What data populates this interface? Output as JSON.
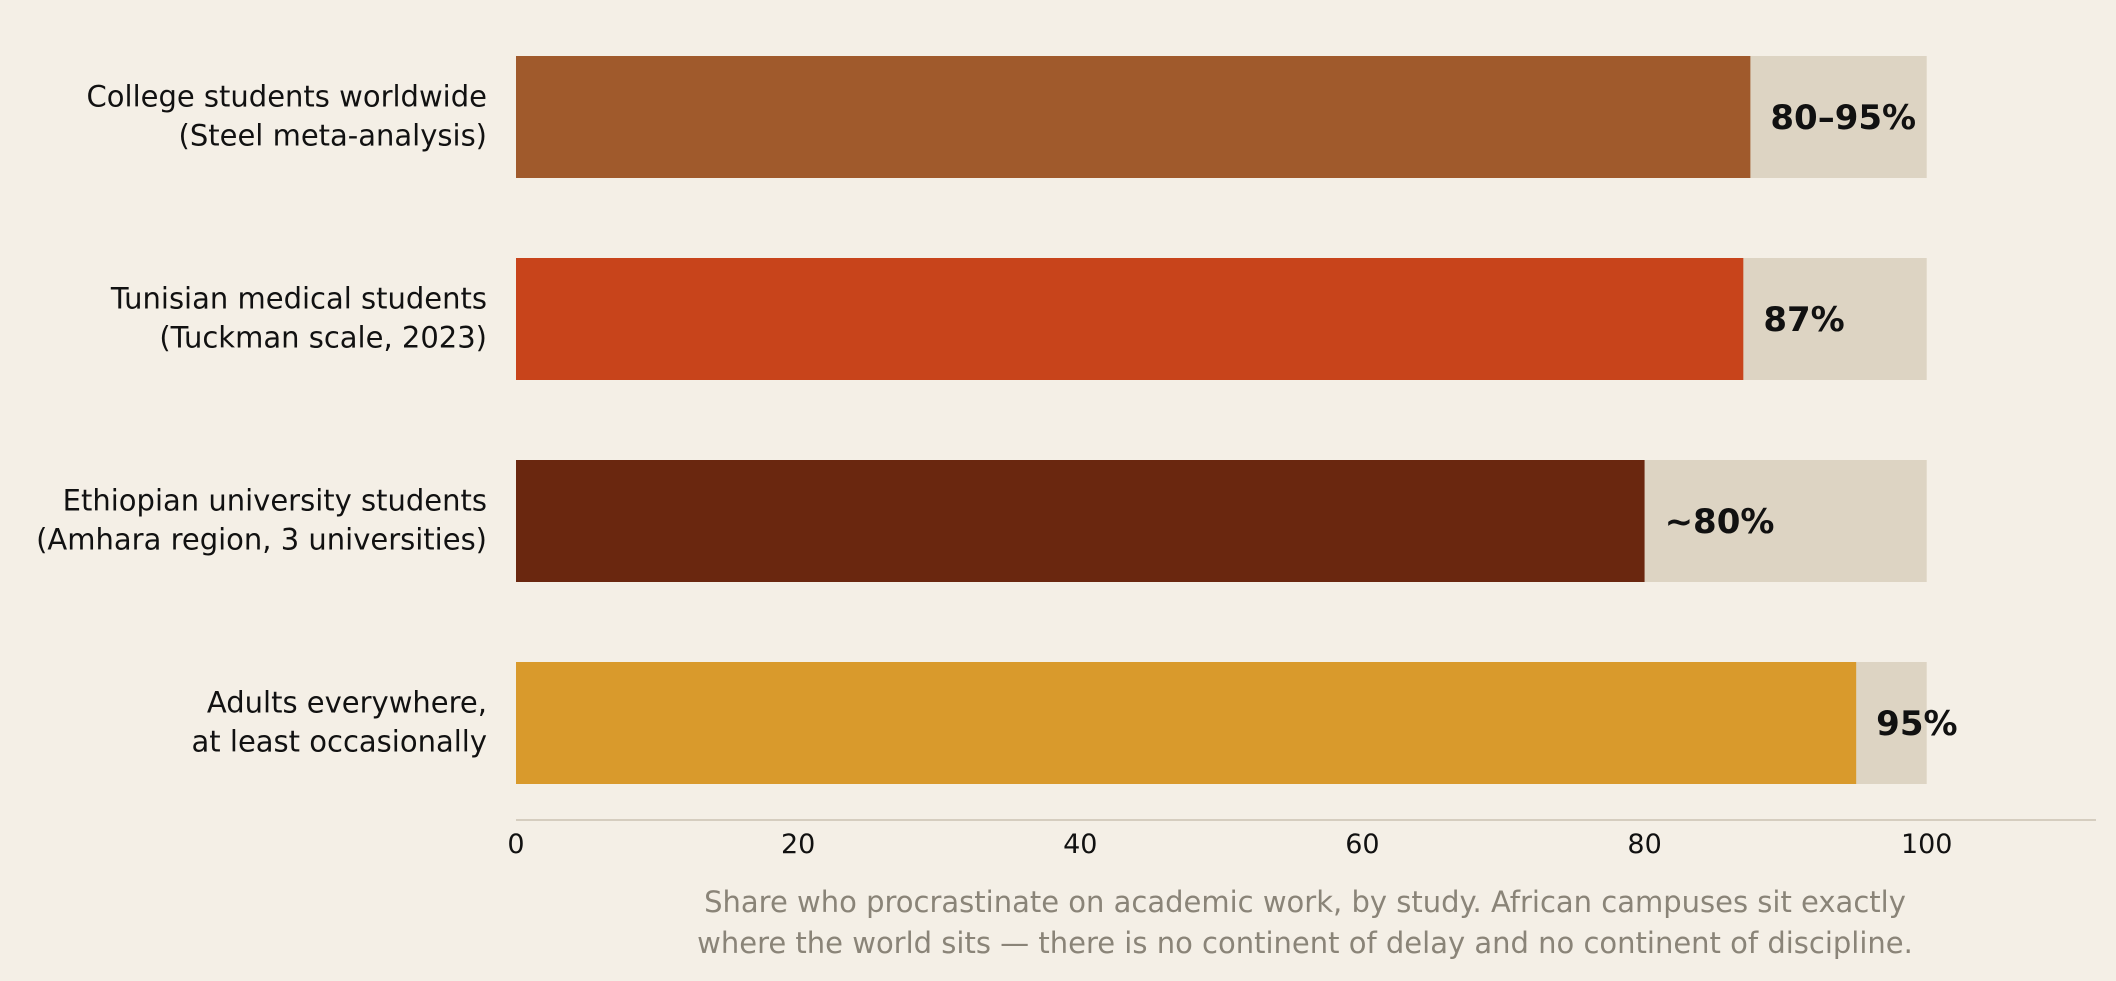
{
  "chart_data": {
    "type": "bar",
    "orientation": "horizontal",
    "categories": [
      [
        "College students worldwide",
        "(Steel meta-analysis)"
      ],
      [
        "Tunisian medical students",
        "(Tuckman scale, 2023)"
      ],
      [
        "Ethiopian university students",
        "(Amhara region, 3 universities)"
      ],
      [
        "Adults everywhere,",
        "at least occasionally"
      ]
    ],
    "values": [
      87.5,
      87,
      80,
      95
    ],
    "value_labels": [
      "80–95%",
      "87%",
      "~80%",
      "95%"
    ],
    "background_max": 100,
    "xlim": [
      0,
      112
    ],
    "xticks": [
      0,
      20,
      40,
      60,
      80,
      100
    ],
    "grid": false,
    "colors": {
      "bars": [
        "#a05a2c",
        "#c8441b",
        "#6a270f",
        "#d99a2c"
      ],
      "track": "#ddd4c3",
      "axis": "#d5cdbf",
      "text": "#111111",
      "caption": "#8a8478",
      "background": "#f4efe6"
    }
  },
  "caption": {
    "lines": [
      "Share who procrastinate on academic work, by study. African campuses sit exactly",
      "where the world sits — there is no continent of delay and no continent of discipline."
    ]
  }
}
